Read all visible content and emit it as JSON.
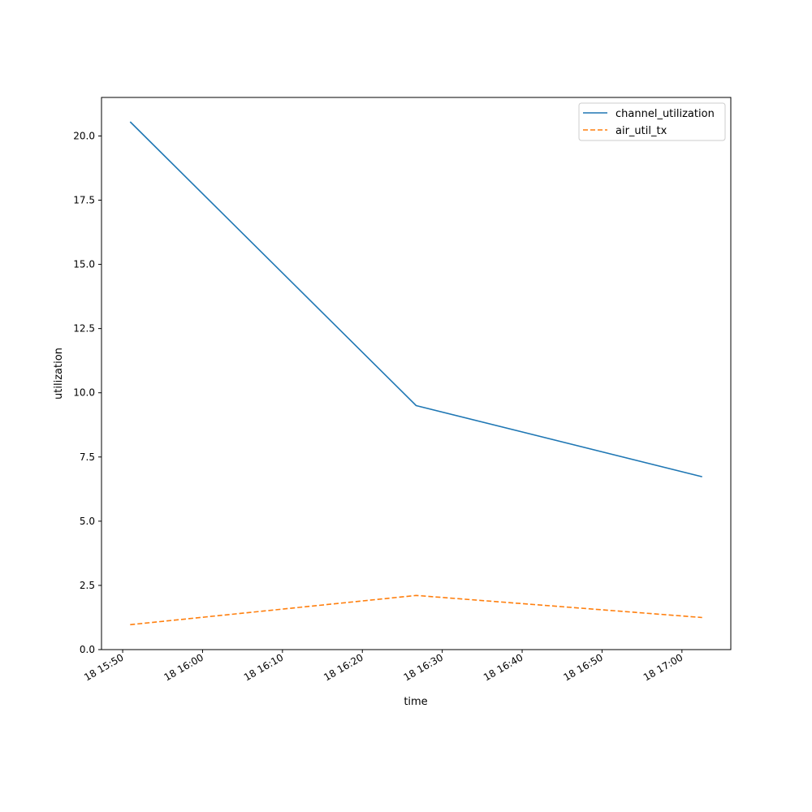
{
  "chart_data": {
    "type": "line",
    "xlabel": "time",
    "ylabel": "utilization",
    "x": [
      "18 15:50:56",
      "18 16:26:44",
      "18 17:02:32"
    ],
    "series": [
      {
        "name": "channel_utilization",
        "values": [
          20.55,
          9.5,
          6.73
        ],
        "color": "#1f77b4",
        "dash": "solid"
      },
      {
        "name": "air_util_tx",
        "values": [
          0.97,
          2.11,
          1.25
        ],
        "color": "#ff7f0e",
        "dash": "dashed"
      }
    ],
    "xlim": [
      "18 15:47:21",
      "18 17:06:07"
    ],
    "ylim": [
      0,
      21.5
    ],
    "x_ticks": [
      "18 15:50",
      "18 16:00",
      "18 16:10",
      "18 16:20",
      "18 16:30",
      "18 16:40",
      "18 16:50",
      "18 17:00"
    ],
    "y_ticks": [
      "0.0",
      "2.5",
      "5.0",
      "7.5",
      "10.0",
      "12.5",
      "15.0",
      "17.5",
      "20.0"
    ],
    "grid": false,
    "legend": "top-right"
  }
}
